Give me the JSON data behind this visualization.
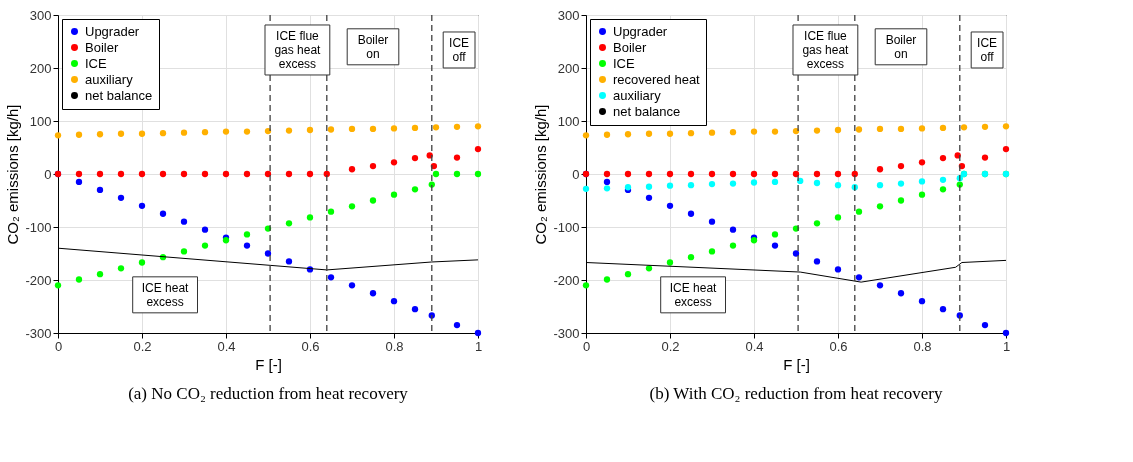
{
  "chart_data": [
    {
      "type": "scatter",
      "title": "(a) No CO₂ reduction from heat recovery",
      "xlabel": "F [-]",
      "ylabel": "CO₂ emissions [kg/h]",
      "xlim": [
        0,
        1
      ],
      "ylim": [
        -300,
        300
      ],
      "xticks": [
        0,
        0.2,
        0.4,
        0.6,
        0.8,
        1
      ],
      "yticks": [
        -300,
        -200,
        -100,
        0,
        100,
        200,
        300
      ],
      "grid": true,
      "legend": "top left",
      "marker": "circle",
      "series": [
        {
          "name": "Upgrader",
          "color": "#0000ff",
          "x": [
            0,
            0.05,
            0.1,
            0.15,
            0.2,
            0.25,
            0.3,
            0.35,
            0.4,
            0.45,
            0.5,
            0.55,
            0.6,
            0.65,
            0.7,
            0.75,
            0.8,
            0.85,
            0.89,
            0.95,
            1
          ],
          "values": [
            0,
            -15,
            -30,
            -45,
            -60,
            -75,
            -90,
            -105,
            -120,
            -135,
            -150,
            -165,
            -180,
            -195,
            -210,
            -225,
            -240,
            -255,
            -267,
            -285,
            -300
          ]
        },
        {
          "name": "Boiler",
          "color": "#ff0000",
          "x": [
            0,
            0.05,
            0.1,
            0.15,
            0.2,
            0.25,
            0.3,
            0.35,
            0.4,
            0.45,
            0.5,
            0.55,
            0.6,
            0.64,
            0.7,
            0.75,
            0.8,
            0.85,
            0.885,
            0.895,
            0.95,
            1
          ],
          "values": [
            0,
            0,
            0,
            0,
            0,
            0,
            0,
            0,
            0,
            0,
            0,
            0,
            0,
            0,
            9,
            15,
            22,
            30,
            35,
            15,
            31,
            47
          ]
        },
        {
          "name": "ICE",
          "color": "#00ff00",
          "x": [
            0,
            0.05,
            0.1,
            0.15,
            0.2,
            0.25,
            0.3,
            0.35,
            0.4,
            0.45,
            0.5,
            0.55,
            0.6,
            0.65,
            0.7,
            0.75,
            0.8,
            0.85,
            0.89,
            0.9,
            0.95,
            1
          ],
          "values": [
            -210,
            -199,
            -189,
            -178,
            -167,
            -157,
            -146,
            -135,
            -125,
            -114,
            -103,
            -93,
            -82,
            -71,
            -61,
            -50,
            -39,
            -29,
            -20,
            0,
            0,
            0
          ]
        },
        {
          "name": "auxiliary",
          "color": "#ffb000",
          "x": [
            0,
            0.05,
            0.1,
            0.15,
            0.2,
            0.25,
            0.3,
            0.35,
            0.4,
            0.45,
            0.5,
            0.55,
            0.6,
            0.65,
            0.7,
            0.75,
            0.8,
            0.85,
            0.9,
            0.95,
            1
          ],
          "values": [
            73,
            74,
            75,
            76,
            76,
            77,
            78,
            79,
            80,
            80,
            81,
            82,
            83,
            84,
            85,
            85,
            86,
            87,
            88,
            89,
            90
          ]
        },
        {
          "name": "net balance",
          "type": "line",
          "marker": "none",
          "color": "#000000",
          "x": [
            0,
            0.64,
            0.89,
            1
          ],
          "values": [
            -140,
            -181,
            -166,
            -162
          ]
        }
      ],
      "ref_lines": [
        {
          "axis": "x",
          "value": 0.505,
          "color": "#404040",
          "line_style": "dashed"
        },
        {
          "axis": "x",
          "value": 0.64,
          "color": "#404040",
          "line_style": "dashed"
        },
        {
          "axis": "x",
          "value": 0.89,
          "color": "#404040",
          "line_style": "dashed"
        }
      ],
      "annotations": [
        "ICE flue gas heat excess",
        "Boiler on",
        "ICE off",
        "ICE heat excess"
      ]
    },
    {
      "type": "scatter",
      "title": "(b) With CO₂ reduction from heat recovery",
      "xlabel": "F [-]",
      "ylabel": "CO₂ emissions [kg/h]",
      "xlim": [
        0,
        1
      ],
      "ylim": [
        -300,
        300
      ],
      "xticks": [
        0,
        0.2,
        0.4,
        0.6,
        0.8,
        1
      ],
      "yticks": [
        -300,
        -200,
        -100,
        0,
        100,
        200,
        300
      ],
      "grid": true,
      "legend": "top left",
      "marker": "circle",
      "series": [
        {
          "name": "Upgrader",
          "color": "#0000ff",
          "x": [
            0,
            0.05,
            0.1,
            0.15,
            0.2,
            0.25,
            0.3,
            0.35,
            0.4,
            0.45,
            0.5,
            0.55,
            0.6,
            0.65,
            0.7,
            0.75,
            0.8,
            0.85,
            0.89,
            0.95,
            1
          ],
          "values": [
            0,
            -15,
            -30,
            -45,
            -60,
            -75,
            -90,
            -105,
            -120,
            -135,
            -150,
            -165,
            -180,
            -195,
            -210,
            -225,
            -240,
            -255,
            -267,
            -285,
            -300
          ]
        },
        {
          "name": "Boiler",
          "color": "#ff0000",
          "x": [
            0,
            0.05,
            0.1,
            0.15,
            0.2,
            0.25,
            0.3,
            0.35,
            0.4,
            0.45,
            0.5,
            0.55,
            0.6,
            0.64,
            0.7,
            0.75,
            0.8,
            0.85,
            0.885,
            0.895,
            0.95,
            1
          ],
          "values": [
            0,
            0,
            0,
            0,
            0,
            0,
            0,
            0,
            0,
            0,
            0,
            0,
            0,
            0,
            9,
            15,
            22,
            30,
            35,
            15,
            31,
            47
          ]
        },
        {
          "name": "ICE",
          "color": "#00ff00",
          "x": [
            0,
            0.05,
            0.1,
            0.15,
            0.2,
            0.25,
            0.3,
            0.35,
            0.4,
            0.45,
            0.5,
            0.55,
            0.6,
            0.65,
            0.7,
            0.75,
            0.8,
            0.85,
            0.89,
            0.9,
            0.95,
            1
          ],
          "values": [
            -210,
            -199,
            -189,
            -178,
            -167,
            -157,
            -146,
            -135,
            -125,
            -114,
            -103,
            -93,
            -82,
            -71,
            -61,
            -50,
            -39,
            -29,
            -20,
            0,
            0,
            0
          ]
        },
        {
          "name": "recovered heat",
          "color": "#ffb000",
          "x": [
            0,
            0.05,
            0.1,
            0.15,
            0.2,
            0.25,
            0.3,
            0.35,
            0.4,
            0.45,
            0.5,
            0.55,
            0.6,
            0.65,
            0.7,
            0.75,
            0.8,
            0.85,
            0.9,
            0.95,
            1
          ],
          "values": [
            73,
            74,
            75,
            76,
            76,
            77,
            78,
            79,
            80,
            80,
            81,
            82,
            83,
            84,
            85,
            85,
            86,
            87,
            88,
            89,
            90
          ]
        },
        {
          "name": "auxiliary",
          "color": "#00ffff",
          "x": [
            0,
            0.05,
            0.1,
            0.15,
            0.2,
            0.25,
            0.3,
            0.35,
            0.4,
            0.45,
            0.51,
            0.55,
            0.6,
            0.64,
            0.7,
            0.75,
            0.8,
            0.85,
            0.89,
            0.9,
            0.95,
            1
          ],
          "values": [
            -28,
            -27,
            -25,
            -24,
            -22,
            -21,
            -19,
            -18,
            -16,
            -15,
            -13,
            -17,
            -21,
            -25,
            -21,
            -18,
            -14,
            -11,
            -8,
            0,
            0,
            0
          ]
        },
        {
          "name": "net balance",
          "type": "line",
          "marker": "none",
          "color": "#000000",
          "x": [
            0,
            0.51,
            0.655,
            0.88,
            0.895,
            1
          ],
          "values": [
            -167,
            -185,
            -204,
            -176,
            -167,
            -163
          ]
        }
      ],
      "ref_lines": [
        {
          "axis": "x",
          "value": 0.505,
          "color": "#404040",
          "line_style": "dashed"
        },
        {
          "axis": "x",
          "value": 0.64,
          "color": "#404040",
          "line_style": "dashed"
        },
        {
          "axis": "x",
          "value": 0.89,
          "color": "#404040",
          "line_style": "dashed"
        }
      ],
      "annotations": [
        "ICE flue gas heat excess",
        "Boiler on",
        "ICE off",
        "ICE heat excess"
      ]
    }
  ]
}
